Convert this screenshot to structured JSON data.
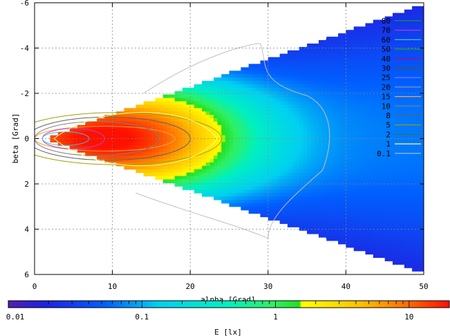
{
  "chart_data": {
    "type": "heatmap",
    "xlabel": "alpha [Grad]",
    "ylabel": "beta [Grad]",
    "colorbar_label": "E [lx]",
    "xlim": [
      0,
      50
    ],
    "ylim": [
      -6,
      6
    ],
    "y_inverted": true,
    "x_ticks": [
      "0",
      "10",
      "20",
      "30",
      "40",
      "50"
    ],
    "y_ticks": [
      "-6",
      "-4",
      "-2",
      "0",
      "2",
      "4",
      "6"
    ],
    "grid": true,
    "colorbar_scale": "log",
    "colorbar_range": [
      0.01,
      20
    ],
    "colorbar_ticks": [
      "0.01",
      "0.1",
      "1",
      "10"
    ],
    "contour_levels": [
      "80",
      "70",
      "60",
      "50",
      "40",
      "30",
      "25",
      "20",
      "15",
      "10",
      "8",
      "5",
      "2",
      "1",
      "0.1"
    ],
    "contour_colors": [
      "#00a040",
      "#c040c0",
      "#40c0e0",
      "#20a020",
      "#c00060",
      "#406020",
      "#8080ff",
      "#9090b0",
      "#ffa040",
      "#808080",
      "#606060",
      "#a0a000",
      "#407040",
      "#ffff80",
      "#c0c0c0"
    ],
    "legend_position": "right",
    "sample_points": [
      {
        "alpha": 8,
        "beta": 0,
        "E": 18
      },
      {
        "alpha": 15,
        "beta": 0,
        "E": 6
      },
      {
        "alpha": 20,
        "beta": 0,
        "E": 1.5
      },
      {
        "alpha": 30,
        "beta": 0,
        "E": 0.15
      },
      {
        "alpha": 30,
        "beta": -4,
        "E": 0.08
      },
      {
        "alpha": 48,
        "beta": 0,
        "E": 0.05
      }
    ]
  }
}
